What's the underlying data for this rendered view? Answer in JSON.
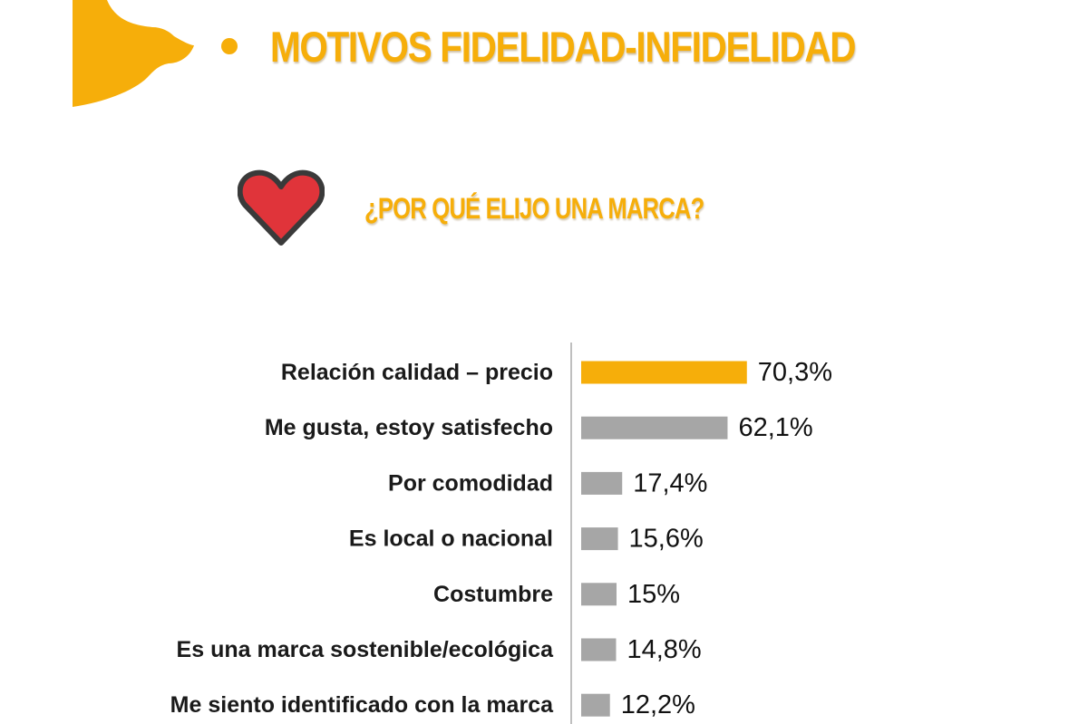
{
  "header": {
    "title": "MOTIVOS FIDELIDAD-INFIDELIDAD",
    "subtitle": "¿POR QUÉ ELIJO UNA MARCA?"
  },
  "colors": {
    "accent": "#f6ae0a",
    "bar_highlight": "#f6ae0a",
    "bar_default": "#a6a6a6",
    "heart": "#e0343a",
    "heart_outline": "#3a3a3a"
  },
  "icons": {
    "heart": "heart-icon",
    "decoration": "orange-circles-decoration"
  },
  "chart_data": {
    "type": "bar",
    "orientation": "horizontal",
    "categories": [
      "Relación calidad – precio",
      "Me gusta, estoy satisfecho",
      "Por comodidad",
      "Es local o nacional",
      "Costumbre",
      "Es una marca sostenible/ecológica",
      "Me siento identificado con la marca"
    ],
    "values": [
      70.3,
      62.1,
      17.4,
      15.6,
      15,
      14.8,
      12.2
    ],
    "value_labels": [
      "70,3%",
      "62,1%",
      "17,4%",
      "15,6%",
      "15%",
      "14,8%",
      "12,2%"
    ],
    "highlight_index": 0,
    "xlim": [
      0,
      100
    ],
    "grid": false,
    "legend": "none"
  }
}
